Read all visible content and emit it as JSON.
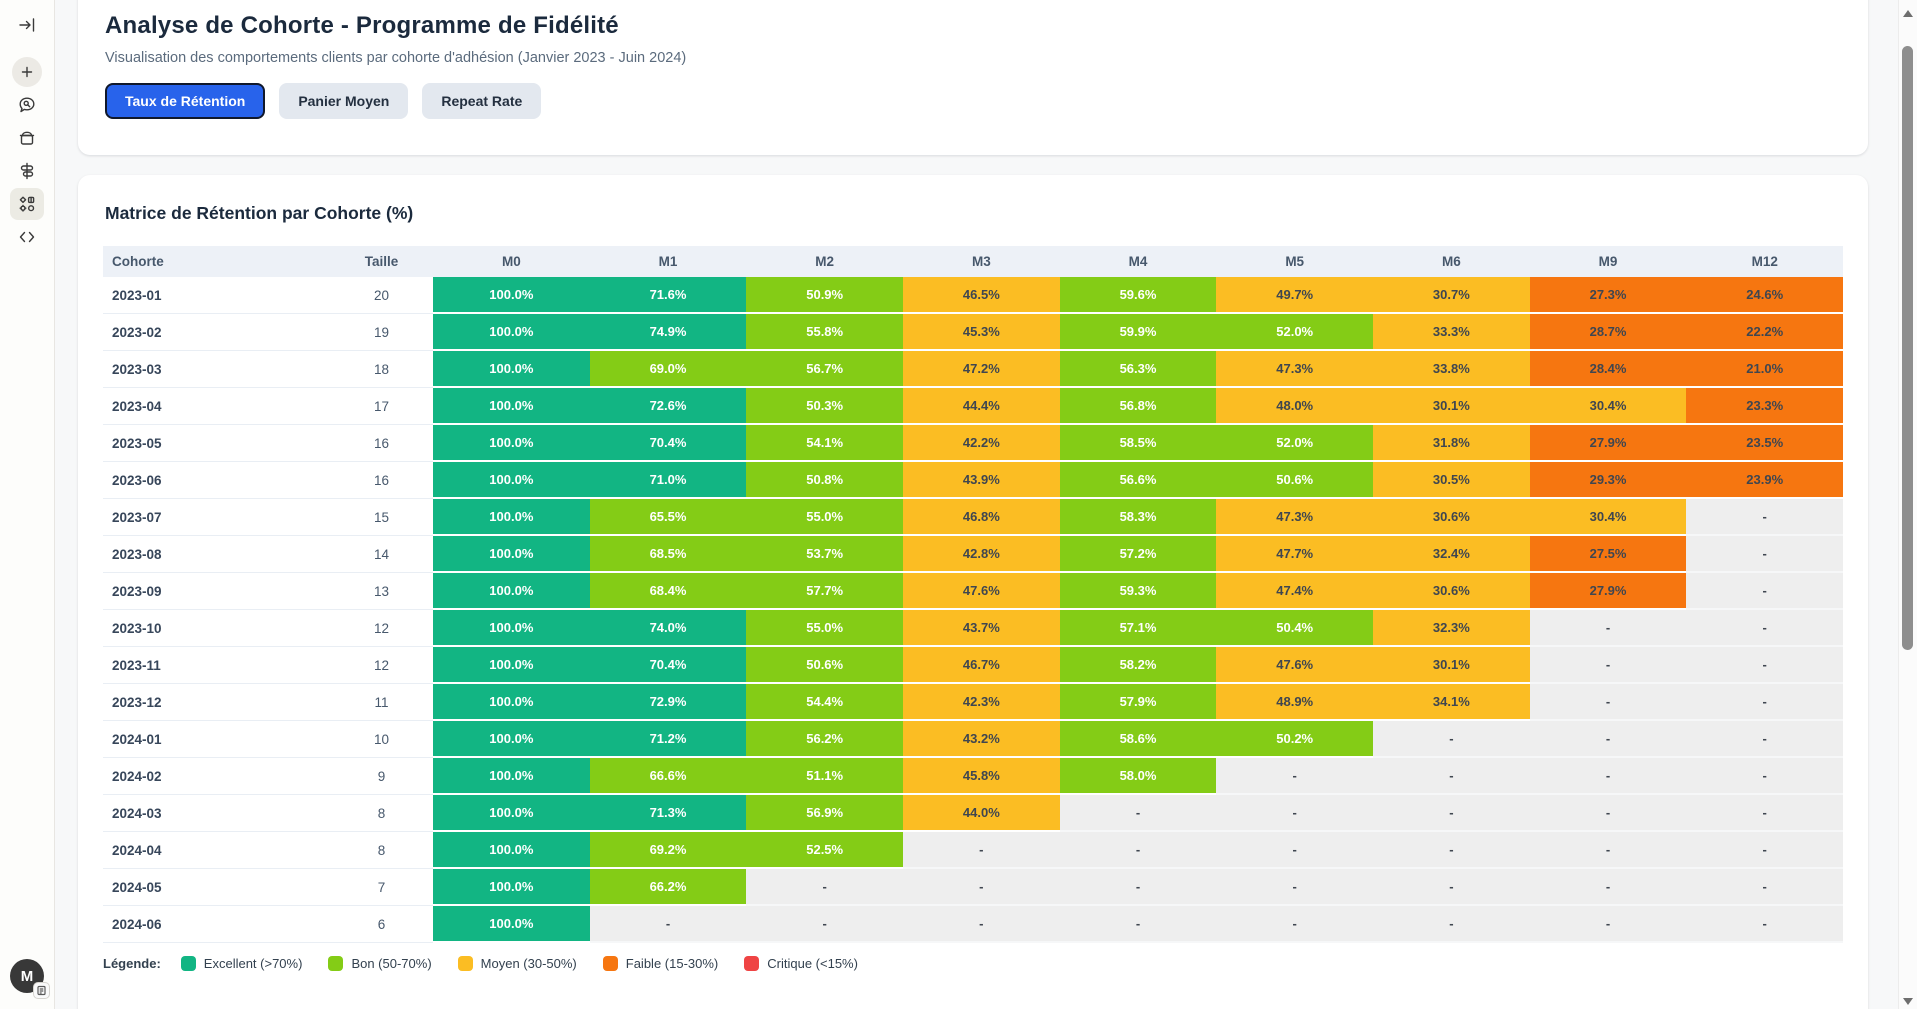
{
  "sidebar": {
    "icons": [
      "expand-panel-icon",
      "plus-icon",
      "chat-search-icon",
      "box-icon",
      "filters-icon",
      "categories-icon",
      "code-icon"
    ],
    "avatar_initial": "M"
  },
  "header": {
    "title": "Analyse de Cohorte - Programme de Fidélité",
    "subtitle": "Visualisation des comportements clients par cohorte d'adhésion (Janvier 2023 - Juin 2024)",
    "tabs": [
      {
        "label": "Taux de Rétention",
        "active": true
      },
      {
        "label": "Panier Moyen",
        "active": false
      },
      {
        "label": "Repeat Rate",
        "active": false
      }
    ]
  },
  "colors": {
    "excellent": "#12b583",
    "bon": "#84cc16",
    "moyen": "#fbbd23",
    "faible": "#f67610",
    "critique": "#ef4444",
    "empty_bg": "#eeeeee",
    "active_tab": "#2863eb"
  },
  "matrix": {
    "title": "Matrice de Rétention par Cohorte (%)",
    "columns": [
      "Cohorte",
      "Taille",
      "M0",
      "M1",
      "M2",
      "M3",
      "M4",
      "M5",
      "M6",
      "M9",
      "M12"
    ],
    "rows": [
      {
        "cohort": "2023-01",
        "size": 20,
        "values": [
          100.0,
          71.6,
          50.9,
          46.5,
          59.6,
          49.7,
          30.7,
          27.3,
          24.6
        ]
      },
      {
        "cohort": "2023-02",
        "size": 19,
        "values": [
          100.0,
          74.9,
          55.8,
          45.3,
          59.9,
          52.0,
          33.3,
          28.7,
          22.2
        ]
      },
      {
        "cohort": "2023-03",
        "size": 18,
        "values": [
          100.0,
          69.0,
          56.7,
          47.2,
          56.3,
          47.3,
          33.8,
          28.4,
          21.0
        ]
      },
      {
        "cohort": "2023-04",
        "size": 17,
        "values": [
          100.0,
          72.6,
          50.3,
          44.4,
          56.8,
          48.0,
          30.1,
          30.4,
          23.3
        ]
      },
      {
        "cohort": "2023-05",
        "size": 16,
        "values": [
          100.0,
          70.4,
          54.1,
          42.2,
          58.5,
          52.0,
          31.8,
          27.9,
          23.5
        ]
      },
      {
        "cohort": "2023-06",
        "size": 16,
        "values": [
          100.0,
          71.0,
          50.8,
          43.9,
          56.6,
          50.6,
          30.5,
          29.3,
          23.9
        ]
      },
      {
        "cohort": "2023-07",
        "size": 15,
        "values": [
          100.0,
          65.5,
          55.0,
          46.8,
          58.3,
          47.3,
          30.6,
          30.4,
          null
        ]
      },
      {
        "cohort": "2023-08",
        "size": 14,
        "values": [
          100.0,
          68.5,
          53.7,
          42.8,
          57.2,
          47.7,
          32.4,
          27.5,
          null
        ]
      },
      {
        "cohort": "2023-09",
        "size": 13,
        "values": [
          100.0,
          68.4,
          57.7,
          47.6,
          59.3,
          47.4,
          30.6,
          27.9,
          null
        ]
      },
      {
        "cohort": "2023-10",
        "size": 12,
        "values": [
          100.0,
          74.0,
          55.0,
          43.7,
          57.1,
          50.4,
          32.3,
          null,
          null
        ]
      },
      {
        "cohort": "2023-11",
        "size": 12,
        "values": [
          100.0,
          70.4,
          50.6,
          46.7,
          58.2,
          47.6,
          30.1,
          null,
          null
        ]
      },
      {
        "cohort": "2023-12",
        "size": 11,
        "values": [
          100.0,
          72.9,
          54.4,
          42.3,
          57.9,
          48.9,
          34.1,
          null,
          null
        ]
      },
      {
        "cohort": "2024-01",
        "size": 10,
        "values": [
          100.0,
          71.2,
          56.2,
          43.2,
          58.6,
          50.2,
          null,
          null,
          null
        ]
      },
      {
        "cohort": "2024-02",
        "size": 9,
        "values": [
          100.0,
          66.6,
          51.1,
          45.8,
          58.0,
          null,
          null,
          null,
          null
        ]
      },
      {
        "cohort": "2024-03",
        "size": 8,
        "values": [
          100.0,
          71.3,
          56.9,
          44.0,
          null,
          null,
          null,
          null,
          null
        ]
      },
      {
        "cohort": "2024-04",
        "size": 8,
        "values": [
          100.0,
          69.2,
          52.5,
          null,
          null,
          null,
          null,
          null,
          null
        ]
      },
      {
        "cohort": "2024-05",
        "size": 7,
        "values": [
          100.0,
          66.2,
          null,
          null,
          null,
          null,
          null,
          null,
          null
        ]
      },
      {
        "cohort": "2024-06",
        "size": 6,
        "values": [
          100.0,
          null,
          null,
          null,
          null,
          null,
          null,
          null,
          null
        ]
      }
    ],
    "empty_symbol": "-",
    "legend": {
      "label": "Légende:",
      "items": [
        {
          "label": "Excellent (>70%)",
          "color_key": "excellent"
        },
        {
          "label": "Bon (50-70%)",
          "color_key": "bon"
        },
        {
          "label": "Moyen (30-50%)",
          "color_key": "moyen"
        },
        {
          "label": "Faible (15-30%)",
          "color_key": "faible"
        },
        {
          "label": "Critique (<15%)",
          "color_key": "critique"
        }
      ]
    }
  }
}
